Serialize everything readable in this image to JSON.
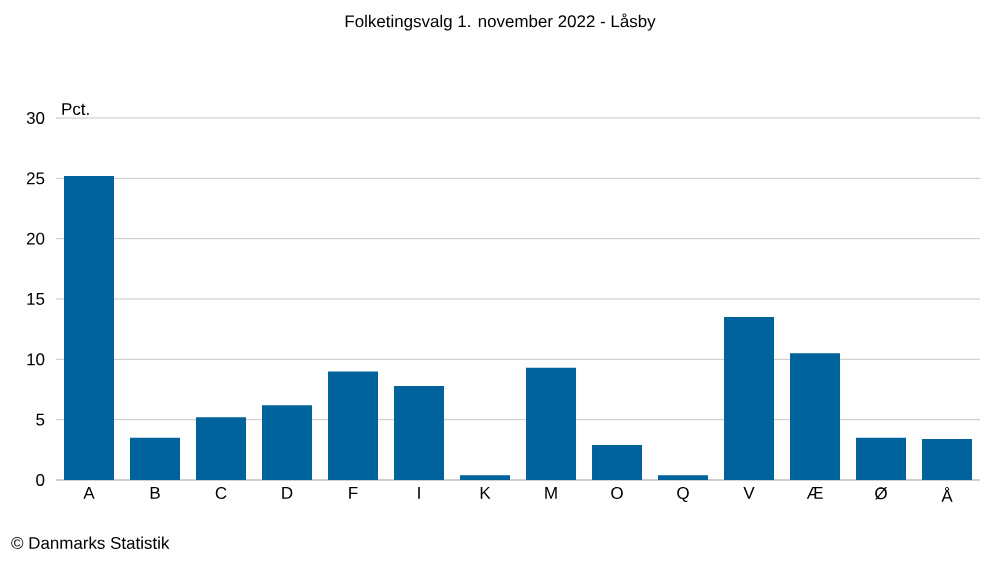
{
  "chart_data": {
    "type": "bar",
    "title": "Folketingsvalg 1. november 2022 - Låsby",
    "ylabel": "Pct.",
    "categories": [
      "A",
      "B",
      "C",
      "D",
      "F",
      "I",
      "K",
      "M",
      "O",
      "Q",
      "V",
      "Æ",
      "Ø",
      "Å"
    ],
    "values": [
      25.2,
      3.5,
      5.2,
      6.2,
      9.0,
      7.8,
      0.4,
      9.3,
      2.9,
      0.4,
      13.5,
      10.5,
      3.5,
      3.4
    ],
    "color": "#00629b",
    "ylim": [
      0,
      30
    ],
    "yticks": [
      0,
      5,
      10,
      15,
      20,
      25,
      30
    ],
    "grid": "y",
    "annotations": [
      "© Danmarks Statistik"
    ]
  }
}
